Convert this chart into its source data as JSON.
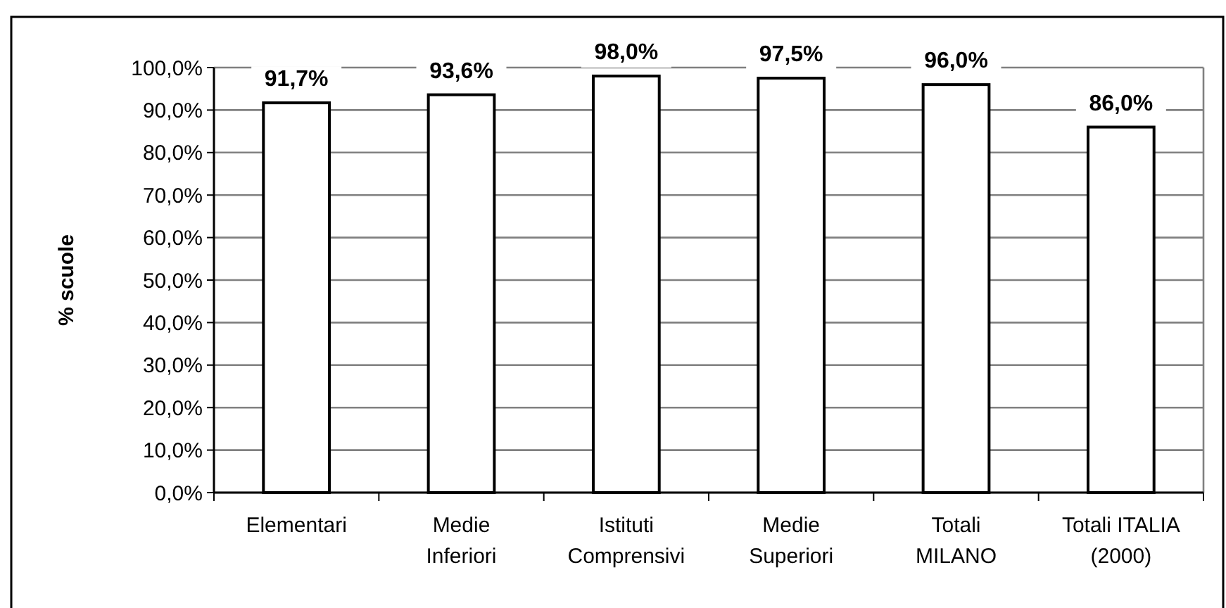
{
  "chart_data": {
    "type": "bar",
    "ylabel": "% scuole",
    "categories": [
      "Elementari",
      "Medie\nInferiori",
      "Istituti\nComprensivi",
      "Medie\nSuperiori",
      "Totali\nMILANO",
      "Totali ITALIA\n(2000)"
    ],
    "values": [
      91.7,
      93.6,
      98.0,
      97.5,
      96.0,
      86.0
    ],
    "value_labels": [
      "91,7%",
      "93,6%",
      "98,0%",
      "97,5%",
      "96,0%",
      "86,0%"
    ],
    "color": "#ffffff",
    "ylim": [
      0,
      100
    ],
    "yticks": [
      {
        "value": 0,
        "label": "0,0%"
      },
      {
        "value": 10,
        "label": "10,0%"
      },
      {
        "value": 20,
        "label": "20,0%"
      },
      {
        "value": 30,
        "label": "30,0%"
      },
      {
        "value": 40,
        "label": "40,0%"
      },
      {
        "value": 50,
        "label": "50,0%"
      },
      {
        "value": 60,
        "label": "60,0%"
      },
      {
        "value": 70,
        "label": "70,0%"
      },
      {
        "value": 80,
        "label": "80,0%"
      },
      {
        "value": 90,
        "label": "90,0%"
      },
      {
        "value": 100,
        "label": "100,0%"
      }
    ],
    "grid": "y"
  }
}
